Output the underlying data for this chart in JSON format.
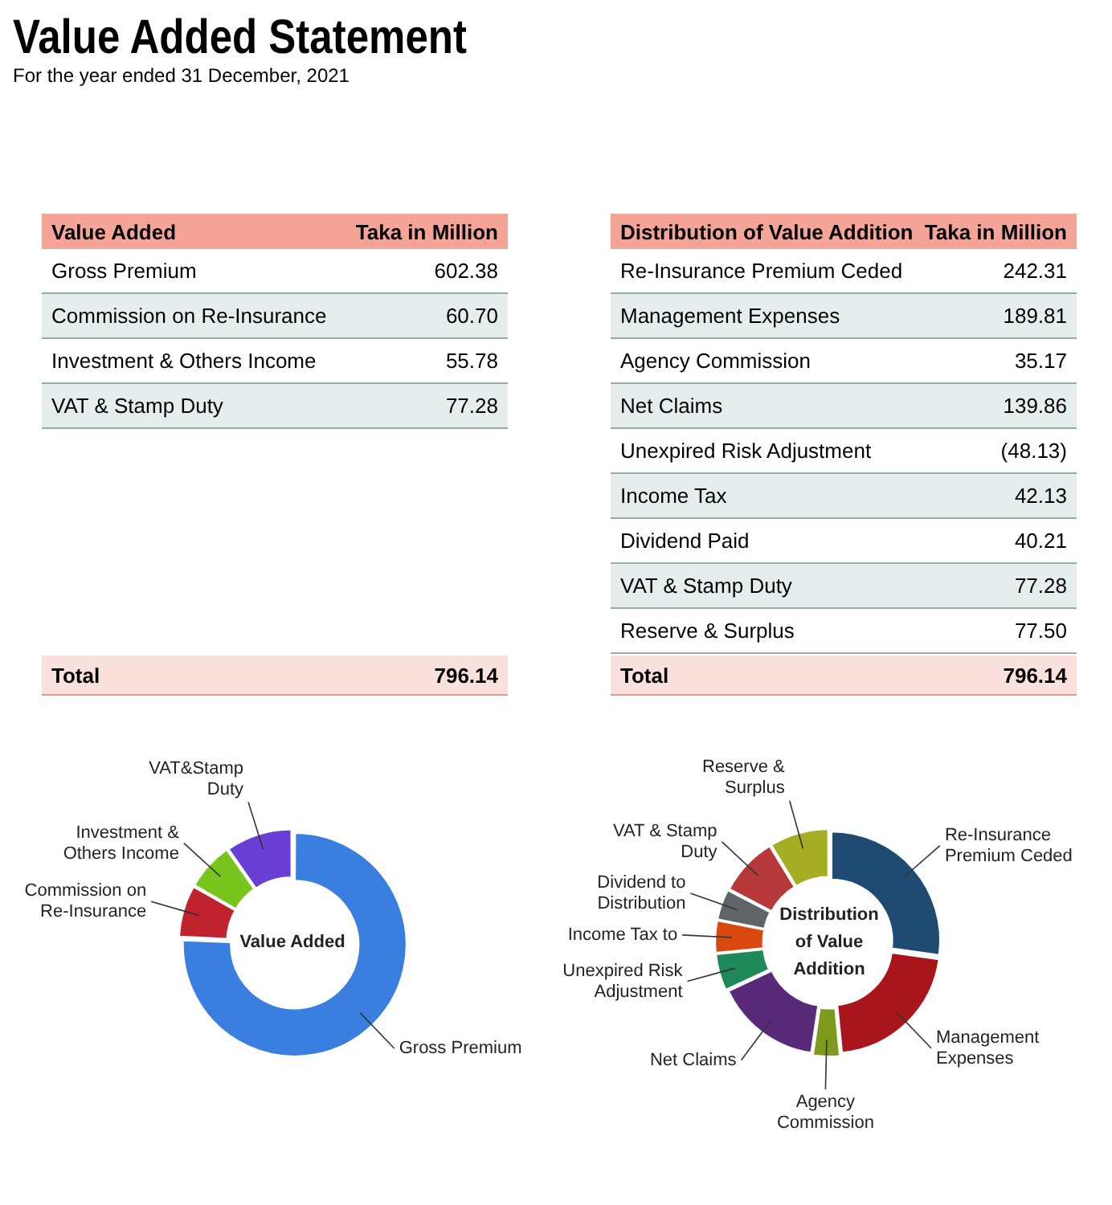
{
  "chart_data": [
    {
      "type": "other",
      "title": "Value Added Statement",
      "subtitle": "For the year ended 31 December, 2021"
    },
    {
      "type": "donut",
      "title": "Value Added",
      "categories": [
        "Gross Premium",
        "Commission on Re-Insurance",
        "Investment & Others Income",
        "VAT&Stamp Duty"
      ],
      "values": [
        75.66,
        7.62,
        7.01,
        9.71
      ],
      "colors": [
        "#3a7fe0",
        "#c0222e",
        "#79c51d",
        "#6a3fd6"
      ],
      "annotations": [
        "Value Added",
        "Taka in Million",
        "Gross Premium",
        "602.38",
        "Commission on Re-Insurance",
        "60.70",
        "Investment & Others Income",
        "55.78",
        "VAT & Stamp Duty",
        "77.28",
        "Total",
        "796.14"
      ],
      "legend": false
    },
    {
      "type": "donut",
      "title": "Distribution of Value Addition",
      "categories": [
        "Re-Insurance Premium Ceded",
        "Management Expenses",
        "Agency Commission",
        "Net Claims",
        "Unexpired Risk Adjustment",
        "Income Tax to",
        "Dividend to Distribution",
        "VAT & Stamp Duty",
        "Reserve & Surplus"
      ],
      "values": [
        27.16,
        21.27,
        3.94,
        15.67,
        5.39,
        4.72,
        4.51,
        8.66,
        8.68
      ],
      "colors": [
        "#1f4a72",
        "#a8161c",
        "#7d9a1c",
        "#5a2a7a",
        "#1e8a5a",
        "#d9480f",
        "#5e6468",
        "#b8393a",
        "#a5ad22"
      ],
      "annotations": [
        "Distribution of Value Addition",
        "Taka in Million",
        "Re-Insurance Premium Ceded",
        "242.31",
        "Management Expenses",
        "189.81",
        "Agency Commission",
        "35.17",
        "Net Claims",
        "139.86",
        "Unexpired Risk Adjustment",
        "(48.13)",
        "Income Tax",
        "42.13",
        "Dividend Paid",
        "40.21",
        "VAT & Stamp Duty",
        "77.28",
        "Reserve & Surplus",
        "77.50",
        "Total",
        "796.14"
      ],
      "legend": false
    }
  ]
}
